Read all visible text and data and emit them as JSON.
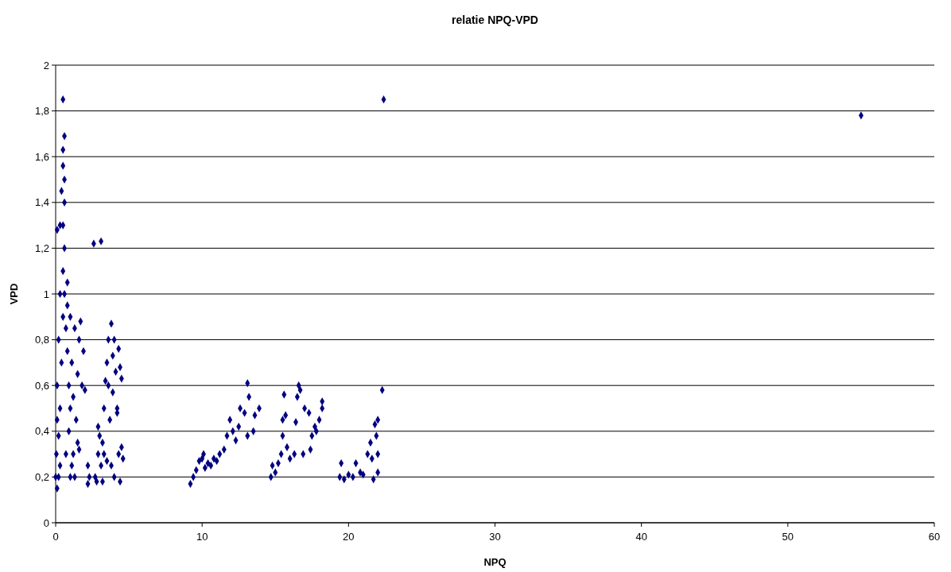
{
  "chart_data": {
    "type": "scatter",
    "title": "relatie NPQ-VPD",
    "xlabel": "NPQ",
    "ylabel": "VPD",
    "xlim": [
      0,
      60
    ],
    "xticks": [
      0,
      10,
      20,
      30,
      40,
      50,
      60
    ],
    "ylim": [
      0,
      2
    ],
    "yticks": [
      {
        "value": 0,
        "label": "0"
      },
      {
        "value": 0.2,
        "label": "0,2"
      },
      {
        "value": 0.4,
        "label": "0,4"
      },
      {
        "value": 0.6,
        "label": "0,6"
      },
      {
        "value": 0.8,
        "label": "0,8"
      },
      {
        "value": 1,
        "label": "1"
      },
      {
        "value": 1.2,
        "label": "1,2"
      },
      {
        "value": 1.4,
        "label": "1,4"
      },
      {
        "value": 1.6,
        "label": "1,6"
      },
      {
        "value": 1.8,
        "label": "1,8"
      },
      {
        "value": 2,
        "label": "2"
      }
    ],
    "grid": "y",
    "marker": "diamond",
    "series": [
      {
        "color": "#000080",
        "x": [
          0.1,
          0.2,
          0.05,
          0.1,
          0.3,
          0.3,
          0.4,
          0.5,
          0.5,
          0.5,
          0.4,
          0.5,
          0.6,
          0.6,
          0.6,
          0.7,
          0.8,
          0.8,
          0.9,
          0.9,
          1.0,
          1.1,
          1.2,
          1.3,
          1.4,
          1.5,
          1.6,
          1.7,
          1.8,
          1.9,
          2.0,
          1.0,
          1.2,
          1.5,
          0.2,
          0.3,
          0.1,
          0.2,
          0.0,
          0.7,
          1.1,
          0.3,
          0.1,
          0.6,
          1.0,
          0.8,
          0.5,
          0.6,
          0.5,
          1.6,
          1.3,
          2.2,
          2.3,
          2.2,
          2.6,
          3.1,
          2.8,
          2.9,
          2.9,
          3.0,
          3.1,
          3.2,
          3.3,
          3.3,
          3.4,
          3.5,
          3.5,
          3.6,
          3.6,
          3.7,
          3.8,
          3.8,
          3.9,
          4.0,
          4.0,
          4.1,
          4.2,
          4.2,
          4.3,
          4.3,
          4.4,
          4.4,
          4.5,
          4.6,
          4.5,
          3.2,
          3.9,
          2.7,
          9.2,
          9.4,
          9.6,
          9.8,
          10.0,
          10.2,
          10.4,
          10.6,
          10.8,
          11.0,
          11.2,
          11.5,
          11.7,
          11.9,
          12.1,
          12.3,
          12.5,
          12.6,
          12.9,
          13.1,
          13.2,
          13.1,
          13.5,
          13.6,
          13.9,
          10.1,
          14.7,
          14.8,
          15.0,
          15.2,
          15.4,
          15.5,
          15.5,
          15.6,
          15.7,
          15.8,
          16.0,
          16.3,
          16.4,
          16.5,
          16.6,
          16.7,
          16.9,
          17.0,
          17.3,
          17.4,
          17.5,
          17.7,
          17.8,
          18.0,
          18.2,
          18.2,
          19.4,
          19.5,
          19.7,
          20.0,
          20.3,
          20.5,
          20.8,
          21.0,
          21.3,
          21.5,
          21.6,
          21.8,
          21.9,
          22.0,
          22.0,
          21.7,
          22.0,
          22.3,
          22.4,
          55
        ],
        "values": [
          0.15,
          0.2,
          0.3,
          0.45,
          0.25,
          0.5,
          0.7,
          0.9,
          1.1,
          1.3,
          1.45,
          1.56,
          1.5,
          1.2,
          1.0,
          0.85,
          1.05,
          0.75,
          0.6,
          0.4,
          0.9,
          0.7,
          0.55,
          0.85,
          0.45,
          0.65,
          0.8,
          0.88,
          0.6,
          0.75,
          0.58,
          0.2,
          0.3,
          0.35,
          0.8,
          1.0,
          0.6,
          0.38,
          0.2,
          0.3,
          0.25,
          1.3,
          1.28,
          1.4,
          0.5,
          0.95,
          1.85,
          1.69,
          1.63,
          0.32,
          0.2,
          0.17,
          0.2,
          0.25,
          1.22,
          1.23,
          0.18,
          0.3,
          0.42,
          0.38,
          0.25,
          0.35,
          0.3,
          0.5,
          0.62,
          0.7,
          0.27,
          0.8,
          0.6,
          0.45,
          0.87,
          0.25,
          0.73,
          0.8,
          0.2,
          0.66,
          0.48,
          0.5,
          0.76,
          0.3,
          0.18,
          0.68,
          0.63,
          0.28,
          0.33,
          0.18,
          0.57,
          0.2,
          0.17,
          0.2,
          0.23,
          0.27,
          0.28,
          0.24,
          0.26,
          0.25,
          0.28,
          0.27,
          0.3,
          0.32,
          0.38,
          0.45,
          0.4,
          0.36,
          0.42,
          0.5,
          0.48,
          0.61,
          0.55,
          0.38,
          0.4,
          0.47,
          0.5,
          0.3,
          0.2,
          0.25,
          0.22,
          0.26,
          0.3,
          0.38,
          0.45,
          0.56,
          0.47,
          0.33,
          0.28,
          0.3,
          0.44,
          0.55,
          0.6,
          0.58,
          0.3,
          0.5,
          0.48,
          0.32,
          0.38,
          0.42,
          0.4,
          0.45,
          0.5,
          0.53,
          0.2,
          0.26,
          0.19,
          0.21,
          0.2,
          0.26,
          0.22,
          0.21,
          0.3,
          0.35,
          0.28,
          0.43,
          0.38,
          0.3,
          0.22,
          0.19,
          0.45,
          0.58,
          1.85,
          1.78
        ]
      }
    ]
  }
}
